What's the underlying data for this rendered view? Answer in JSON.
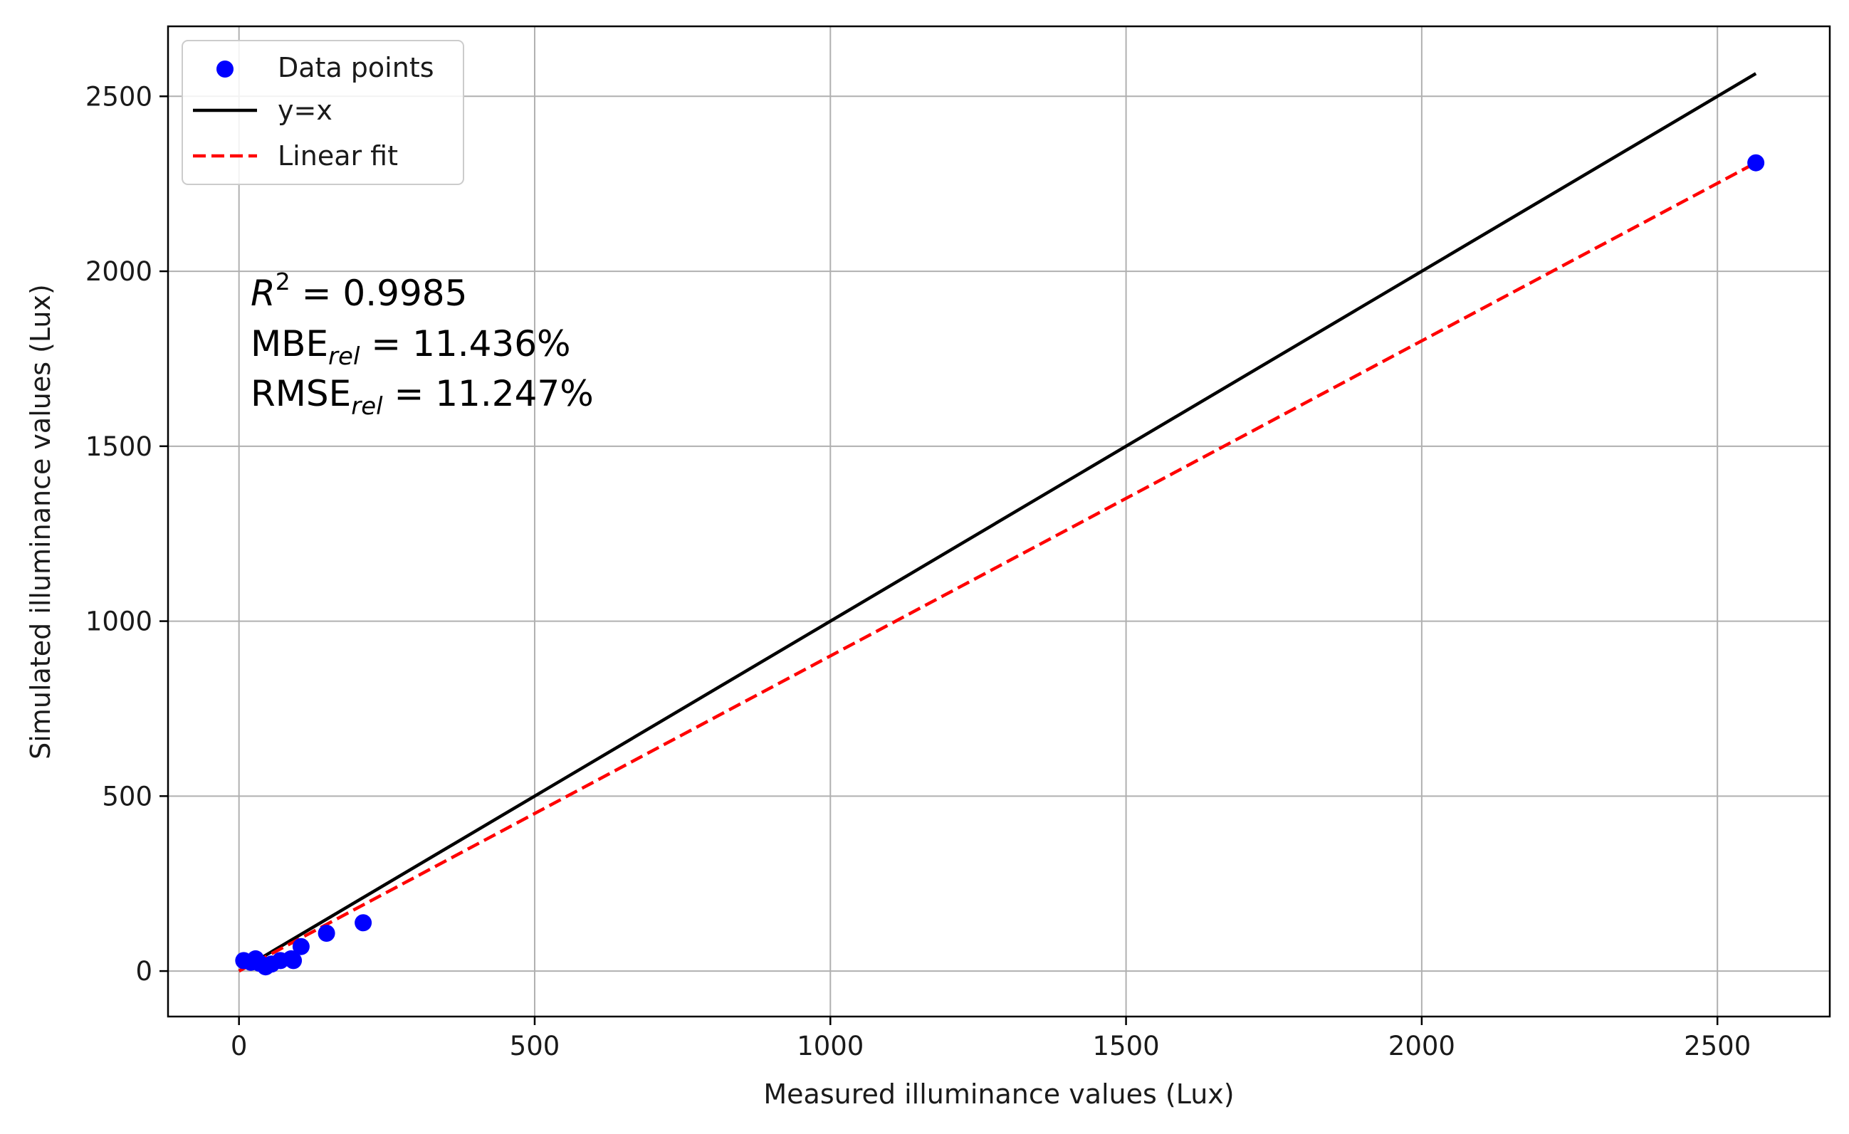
{
  "chart_data": {
    "type": "scatter",
    "xlabel": "Measured illuminance values (Lux)",
    "ylabel": "Simulated illuminance values (Lux)",
    "xlim": [
      -120,
      2690
    ],
    "ylim": [
      -130,
      2700
    ],
    "xticks": [
      0,
      500,
      1000,
      1500,
      2000,
      2500
    ],
    "yticks": [
      0,
      500,
      1000,
      1500,
      2000,
      2500
    ],
    "grid": true,
    "legend_position": "top-left",
    "legend": [
      {
        "label": "Data points",
        "kind": "marker",
        "color": "#0000ff"
      },
      {
        "label": "y=x",
        "kind": "line",
        "color": "#000000"
      },
      {
        "label": "Linear fit",
        "kind": "dashed-line",
        "color": "#ff0000"
      }
    ],
    "series": [
      {
        "name": "Data points",
        "type": "scatter",
        "color": "#0000ff",
        "points": [
          {
            "x": 8,
            "y": 30
          },
          {
            "x": 20,
            "y": 25
          },
          {
            "x": 28,
            "y": 35
          },
          {
            "x": 35,
            "y": 22
          },
          {
            "x": 45,
            "y": 12
          },
          {
            "x": 55,
            "y": 20
          },
          {
            "x": 70,
            "y": 30
          },
          {
            "x": 88,
            "y": 35
          },
          {
            "x": 92,
            "y": 30
          },
          {
            "x": 105,
            "y": 70
          },
          {
            "x": 148,
            "y": 108
          },
          {
            "x": 210,
            "y": 138
          },
          {
            "x": 2565,
            "y": 2310
          }
        ]
      },
      {
        "name": "y=x",
        "type": "line",
        "color": "#000000",
        "points": [
          {
            "x": 0,
            "y": 0
          },
          {
            "x": 2565,
            "y": 2565
          }
        ]
      },
      {
        "name": "Linear fit",
        "type": "dashed-line",
        "color": "#ff0000",
        "points": [
          {
            "x": 0,
            "y": 0
          },
          {
            "x": 2565,
            "y": 2310
          }
        ]
      }
    ],
    "annotations": {
      "r2_symbol": "R",
      "r2_sup": "2",
      "r2_value": " = 0.9985",
      "mbe_label": "MBE",
      "mbe_sub": "rel",
      "mbe_value": " = 11.436%",
      "rmse_label": "RMSE",
      "rmse_sub": "rel",
      "rmse_value": " = 11.247%"
    }
  }
}
